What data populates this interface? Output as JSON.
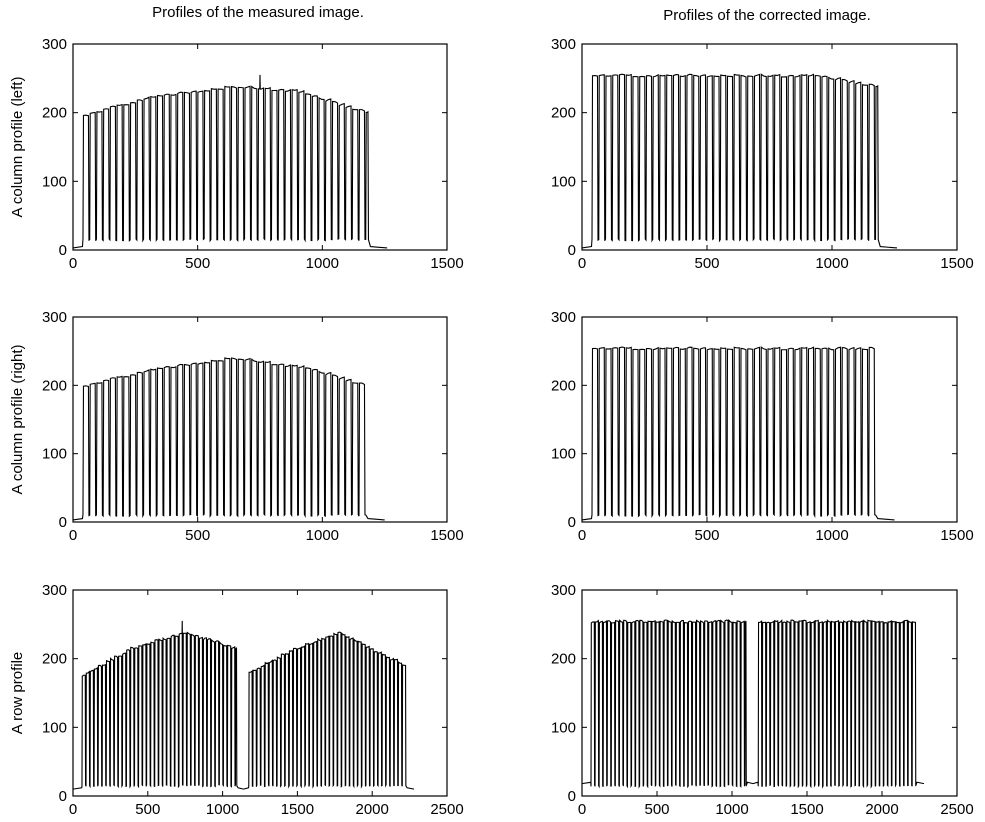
{
  "figure": {
    "column_titles": [
      "Profiles of the measured image.",
      "Profiles of the corrected image."
    ]
  },
  "chart_data": [
    {
      "type": "line",
      "title": "Profiles of the measured image.",
      "ylabel": "A column profile (left)",
      "xlim": [
        0,
        1500
      ],
      "ylim": [
        0,
        300
      ],
      "xticks": [
        0,
        500,
        1000,
        1500
      ],
      "yticks": [
        0,
        100,
        200,
        300
      ],
      "grid": false,
      "series": [
        {
          "profile": "bar-pattern",
          "start": 0,
          "edge_start": 40,
          "edge_end": 1185,
          "end": 1260,
          "period": 27,
          "floor": 15,
          "baseline": 3,
          "peak_envelope": [
            [
              40,
              195
            ],
            [
              300,
              222
            ],
            [
              650,
              238
            ],
            [
              900,
              232
            ],
            [
              1185,
              200
            ]
          ],
          "spikes": [
            [
              750,
              255
            ]
          ]
        }
      ]
    },
    {
      "type": "line",
      "title": "Profiles of the corrected image.",
      "ylabel": "",
      "xlim": [
        0,
        1500
      ],
      "ylim": [
        0,
        300
      ],
      "xticks": [
        0,
        500,
        1000,
        1500
      ],
      "yticks": [
        0,
        100,
        200,
        300
      ],
      "grid": false,
      "series": [
        {
          "profile": "bar-pattern",
          "start": 0,
          "edge_start": 40,
          "edge_end": 1185,
          "end": 1260,
          "period": 27,
          "floor": 15,
          "baseline": 3,
          "peak_envelope": [
            [
              40,
              254
            ],
            [
              950,
              254
            ],
            [
              1185,
              238
            ]
          ],
          "spikes": []
        }
      ]
    },
    {
      "type": "line",
      "ylabel": "A column profile (right)",
      "xlim": [
        0,
        1500
      ],
      "ylim": [
        0,
        300
      ],
      "xticks": [
        0,
        500,
        1000,
        1500
      ],
      "yticks": [
        0,
        100,
        200,
        300
      ],
      "grid": false,
      "series": [
        {
          "profile": "bar-pattern",
          "start": 0,
          "edge_start": 40,
          "edge_end": 1175,
          "end": 1250,
          "period": 27,
          "floor": 10,
          "baseline": 3,
          "peak_envelope": [
            [
              40,
              198
            ],
            [
              300,
              222
            ],
            [
              650,
              240
            ],
            [
              950,
              225
            ],
            [
              1175,
              200
            ]
          ],
          "spikes": []
        }
      ]
    },
    {
      "type": "line",
      "ylabel": "",
      "xlim": [
        0,
        1500
      ],
      "ylim": [
        0,
        300
      ],
      "xticks": [
        0,
        500,
        1000,
        1500
      ],
      "yticks": [
        0,
        100,
        200,
        300
      ],
      "grid": false,
      "series": [
        {
          "profile": "bar-pattern",
          "start": 0,
          "edge_start": 40,
          "edge_end": 1175,
          "end": 1250,
          "period": 27,
          "floor": 10,
          "baseline": 3,
          "peak_envelope": [
            [
              40,
              254
            ],
            [
              1175,
              254
            ]
          ],
          "spikes": []
        }
      ]
    },
    {
      "type": "line",
      "ylabel": "A row profile",
      "xlim": [
        0,
        2500
      ],
      "ylim": [
        0,
        300
      ],
      "xticks": [
        0,
        500,
        1000,
        1500,
        2000,
        2500
      ],
      "yticks": [
        0,
        100,
        200,
        300
      ],
      "grid": false,
      "series": [
        {
          "profile": "bar-pattern",
          "start": 0,
          "edge_start": 60,
          "edge_end": 1095,
          "end": 1140,
          "period": 27,
          "floor": 15,
          "baseline": 10,
          "peak_envelope": [
            [
              60,
              175
            ],
            [
              400,
              215
            ],
            [
              750,
              238
            ],
            [
              1095,
              215
            ]
          ],
          "spikes": [
            [
              730,
              255
            ]
          ]
        },
        {
          "profile": "bar-pattern",
          "start": 1140,
          "edge_start": 1175,
          "edge_end": 2225,
          "end": 2280,
          "period": 27,
          "floor": 15,
          "baseline": 10,
          "peak_envelope": [
            [
              1175,
              180
            ],
            [
              1500,
              215
            ],
            [
              1780,
              238
            ],
            [
              2225,
              190
            ]
          ],
          "spikes": []
        }
      ]
    },
    {
      "type": "line",
      "ylabel": "",
      "xlim": [
        0,
        2500
      ],
      "ylim": [
        0,
        300
      ],
      "xticks": [
        0,
        500,
        1000,
        1500,
        2000,
        2500
      ],
      "yticks": [
        0,
        100,
        200,
        300
      ],
      "grid": false,
      "series": [
        {
          "profile": "bar-pattern",
          "start": 0,
          "edge_start": 60,
          "edge_end": 1095,
          "end": 1140,
          "period": 27,
          "floor": 15,
          "baseline": 18,
          "peak_envelope": [
            [
              60,
              254
            ],
            [
              1095,
              254
            ]
          ],
          "spikes": []
        },
        {
          "profile": "bar-pattern",
          "start": 1140,
          "edge_start": 1175,
          "edge_end": 2225,
          "end": 2280,
          "period": 27,
          "floor": 15,
          "baseline": 18,
          "peak_envelope": [
            [
              1175,
              254
            ],
            [
              2225,
              254
            ]
          ],
          "spikes": []
        }
      ]
    }
  ]
}
